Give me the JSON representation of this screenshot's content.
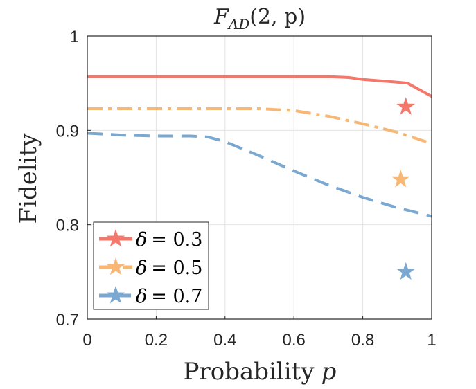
{
  "chart_data": {
    "type": "line",
    "title_main": "F",
    "title_sub": "AD",
    "title_args": "(2, p)",
    "xlabel_text": "Probability",
    "xlabel_var": "p",
    "ylabel": "Fidelity",
    "xlim": [
      0,
      1
    ],
    "ylim": [
      0.7,
      1
    ],
    "xticks": [
      0,
      0.2,
      0.4,
      0.6,
      0.8,
      1
    ],
    "xtick_labels": [
      "0",
      "0.2",
      "0.4",
      "0.6",
      "0.8",
      "1"
    ],
    "yticks": [
      0.7,
      0.8,
      0.9,
      1
    ],
    "ytick_labels": [
      "0.7",
      "0.8",
      "0.9",
      "1"
    ],
    "grid": true,
    "legend_position": "bottom-left",
    "series": [
      {
        "name": "δ = 0.3",
        "legend_symbol": "δ",
        "legend_value": "= 0.3",
        "color": "#f4776b",
        "dash": "solid",
        "x": [
          0,
          0.1,
          0.2,
          0.3,
          0.4,
          0.5,
          0.6,
          0.7,
          0.76,
          0.8,
          0.9,
          0.93,
          1.0
        ],
        "y": [
          0.957,
          0.957,
          0.957,
          0.957,
          0.957,
          0.957,
          0.957,
          0.957,
          0.956,
          0.954,
          0.951,
          0.95,
          0.936
        ],
        "star": {
          "x": 0.925,
          "y": 0.925
        }
      },
      {
        "name": "δ = 0.5",
        "legend_symbol": "δ",
        "legend_value": "= 0.5",
        "color": "#f9b776",
        "dash": "dashdot",
        "x": [
          0,
          0.1,
          0.2,
          0.3,
          0.4,
          0.5,
          0.55,
          0.6,
          0.7,
          0.8,
          0.9,
          1.0
        ],
        "y": [
          0.923,
          0.923,
          0.923,
          0.923,
          0.923,
          0.923,
          0.922,
          0.921,
          0.915,
          0.907,
          0.898,
          0.886
        ],
        "star": {
          "x": 0.91,
          "y": 0.848
        }
      },
      {
        "name": "δ = 0.7",
        "legend_symbol": "δ",
        "legend_value": "= 0.7",
        "color": "#7ba8d1",
        "dash": "dashed",
        "x": [
          0,
          0.1,
          0.2,
          0.3,
          0.35,
          0.4,
          0.5,
          0.6,
          0.7,
          0.8,
          0.9,
          1.0
        ],
        "y": [
          0.897,
          0.895,
          0.894,
          0.894,
          0.893,
          0.888,
          0.873,
          0.857,
          0.842,
          0.829,
          0.818,
          0.809
        ],
        "star": {
          "x": 0.925,
          "y": 0.75
        }
      }
    ]
  }
}
